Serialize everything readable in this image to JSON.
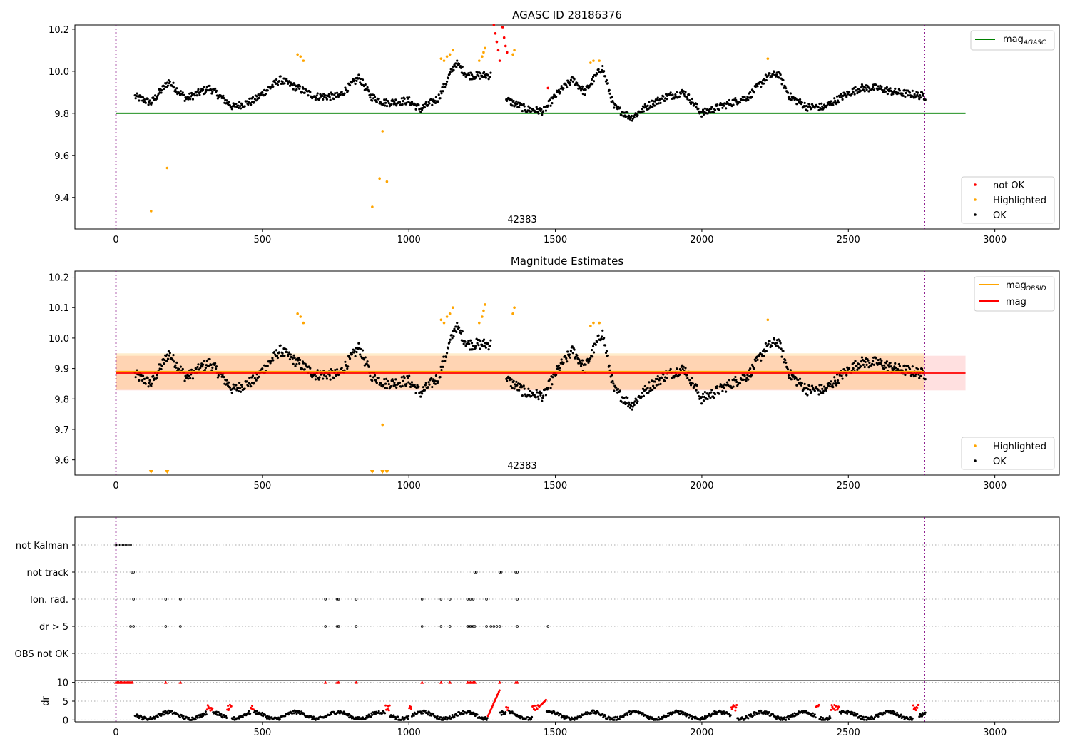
{
  "chart_data": [
    {
      "type": "scatter",
      "title": "AGASC ID 28186376",
      "annotation": "42383",
      "xlim": [
        -140,
        3220
      ],
      "ylim": [
        9.25,
        10.22
      ],
      "xticks": [
        0,
        500,
        1000,
        1500,
        2000,
        2500,
        3000
      ],
      "xtick_labels": [
        "0",
        "500",
        "1000",
        "1500",
        "2000",
        "2500",
        "3000"
      ],
      "yticks": [
        9.4,
        9.6,
        9.8,
        10.0,
        10.2
      ],
      "ytick_labels": [
        "9.4",
        "9.6",
        "9.8",
        "10.0",
        "10.2"
      ],
      "vlines": [
        0,
        2760
      ],
      "hline": {
        "name": "mag_AGASC",
        "y": 9.8,
        "x_range": [
          0,
          2900
        ],
        "color": "#008000"
      },
      "legend_line": {
        "label": "mag",
        "subscript": "AGASC"
      },
      "legend_points": [
        {
          "label": "not OK",
          "color": "#ff0000"
        },
        {
          "label": "Highlighted",
          "color": "#ffa500"
        },
        {
          "label": "OK",
          "color": "#000000"
        }
      ],
      "series": [
        {
          "name": "OK",
          "color": "#000000",
          "x_range": [
            65,
            2765
          ],
          "trend_x": [
            65,
            120,
            180,
            240,
            320,
            400,
            470,
            560,
            620,
            680,
            760,
            830,
            870,
            920,
            1000,
            1040,
            1100,
            1160,
            1200,
            1280,
            1340,
            1400,
            1460,
            1510,
            1560,
            1600,
            1660,
            1700,
            1760,
            1820,
            1880,
            1940,
            2000,
            2040,
            2100,
            2160,
            2220,
            2260,
            2300,
            2360,
            2420,
            2480,
            2540,
            2600,
            2660,
            2720,
            2765
          ],
          "trend_y": [
            9.88,
            9.85,
            9.95,
            9.87,
            9.92,
            9.83,
            9.86,
            9.96,
            9.92,
            9.88,
            9.88,
            9.97,
            9.88,
            9.85,
            9.86,
            9.82,
            9.87,
            10.04,
            9.98,
            9.98,
            9.86,
            9.82,
            9.81,
            9.9,
            9.96,
            9.9,
            10.02,
            9.83,
            9.78,
            9.84,
            9.88,
            9.9,
            9.8,
            9.82,
            9.85,
            9.88,
            9.97,
            9.99,
            9.88,
            9.83,
            9.83,
            9.88,
            9.92,
            9.92,
            9.9,
            9.89,
            9.88
          ],
          "noise": 0.018
        },
        {
          "name": "Highlighted",
          "color": "#ffa500",
          "points": [
            [
              120,
              9.335
            ],
            [
              175,
              9.54
            ],
            [
              875,
              9.355
            ],
            [
              900,
              9.49
            ],
            [
              910,
              9.715
            ],
            [
              925,
              9.475
            ],
            [
              620,
              10.08
            ],
            [
              630,
              10.07
            ],
            [
              640,
              10.05
            ],
            [
              1110,
              10.06
            ],
            [
              1120,
              10.05
            ],
            [
              1130,
              10.07
            ],
            [
              1140,
              10.08
            ],
            [
              1150,
              10.1
            ],
            [
              1240,
              10.05
            ],
            [
              1250,
              10.07
            ],
            [
              1255,
              10.09
            ],
            [
              1260,
              10.11
            ],
            [
              1355,
              10.08
            ],
            [
              1360,
              10.1
            ],
            [
              1620,
              10.04
            ],
            [
              1630,
              10.05
            ],
            [
              1650,
              10.05
            ],
            [
              2225,
              10.06
            ]
          ]
        },
        {
          "name": "not OK",
          "color": "#ff0000",
          "points": [
            [
              1290,
              10.22
            ],
            [
              1295,
              10.18
            ],
            [
              1300,
              10.14
            ],
            [
              1305,
              10.1
            ],
            [
              1310,
              10.05
            ],
            [
              1320,
              10.21
            ],
            [
              1325,
              10.16
            ],
            [
              1330,
              10.12
            ],
            [
              1335,
              10.09
            ],
            [
              1475,
              9.92
            ]
          ]
        }
      ]
    },
    {
      "type": "scatter",
      "title": "Magnitude Estimates",
      "annotation": "42383",
      "xlim": [
        -140,
        3220
      ],
      "ylim": [
        9.55,
        10.22
      ],
      "xticks": [
        0,
        500,
        1000,
        1500,
        2000,
        2500,
        3000
      ],
      "xtick_labels": [
        "0",
        "500",
        "1000",
        "1500",
        "2000",
        "2500",
        "3000"
      ],
      "yticks": [
        9.6,
        9.7,
        9.8,
        9.9,
        10.0,
        10.1,
        10.2
      ],
      "ytick_labels": [
        "9.6",
        "9.7",
        "9.8",
        "9.9",
        "10.0",
        "10.1",
        "10.2"
      ],
      "vlines": [
        0,
        2760
      ],
      "mag": {
        "y": 9.885,
        "band": [
          9.828,
          9.942
        ],
        "x_range": [
          0,
          2900
        ],
        "color": "#ff0000"
      },
      "mag_obsid": {
        "y": 9.89,
        "band": [
          9.83,
          9.95
        ],
        "x_range": [
          0,
          2760
        ],
        "color": "#ffa500"
      },
      "legend_lines": [
        {
          "label": "mag",
          "subscript": "OBSID",
          "color": "#ffa500"
        },
        {
          "label": "mag",
          "subscript": "",
          "color": "#ff0000"
        }
      ],
      "legend_points": [
        {
          "label": "Highlighted",
          "color": "#ffa500"
        },
        {
          "label": "OK",
          "color": "#000000"
        }
      ],
      "clipped_low_markers_x": [
        120,
        175,
        875,
        910,
        925
      ]
    },
    {
      "type": "scatter",
      "title": "",
      "categories": [
        "not Kalman",
        "not track",
        "Ion. rad.",
        "dr > 5",
        "OBS not OK"
      ],
      "xlim": [
        -140,
        3220
      ],
      "flags": {
        "not Kalman": [
          0,
          5,
          10,
          15,
          20,
          25,
          30,
          35,
          40,
          45,
          50
        ],
        "not track": [
          55,
          60,
          1225,
          1230,
          1310,
          1315,
          1365,
          1370
        ],
        "Ion. rad.": [
          60,
          170,
          220,
          715,
          755,
          760,
          820,
          1045,
          1110,
          1140,
          1200,
          1210,
          1220,
          1265,
          1370
        ],
        "dr > 5": [
          50,
          60,
          170,
          220,
          715,
          755,
          760,
          820,
          1045,
          1110,
          1140,
          1200,
          1205,
          1210,
          1215,
          1220,
          1225,
          1265,
          1280,
          1290,
          1300,
          1310,
          1370,
          1475
        ],
        "OBS not OK": []
      },
      "dr_panel": {
        "ylabel": "dr",
        "yticks": [
          0,
          5,
          10
        ],
        "ytick_labels": [
          "0",
          "5",
          "10"
        ],
        "ylim": [
          -0.5,
          10.5
        ],
        "xticks": [
          0,
          500,
          1000,
          1500,
          2000,
          2500,
          3000
        ],
        "xtick_labels": [
          "0",
          "500",
          "1000",
          "1500",
          "2000",
          "2500",
          "3000"
        ],
        "high_markers_x": [
          0,
          5,
          10,
          15,
          20,
          25,
          30,
          35,
          40,
          45,
          50,
          55,
          170,
          220,
          715,
          755,
          760,
          820,
          1045,
          1110,
          1140,
          1200,
          1205,
          1210,
          1215,
          1220,
          1225,
          1310,
          1365,
          1370
        ],
        "red_segments": [
          [
            310,
            330
          ],
          [
            380,
            395
          ],
          [
            460,
            470
          ],
          [
            920,
            935
          ],
          [
            1000,
            1010
          ],
          [
            1270,
            1310
          ],
          [
            1330,
            1340
          ],
          [
            1420,
            1470
          ],
          [
            2100,
            2120
          ],
          [
            2390,
            2400
          ],
          [
            2440,
            2470
          ],
          [
            2720,
            2740
          ]
        ]
      }
    }
  ]
}
